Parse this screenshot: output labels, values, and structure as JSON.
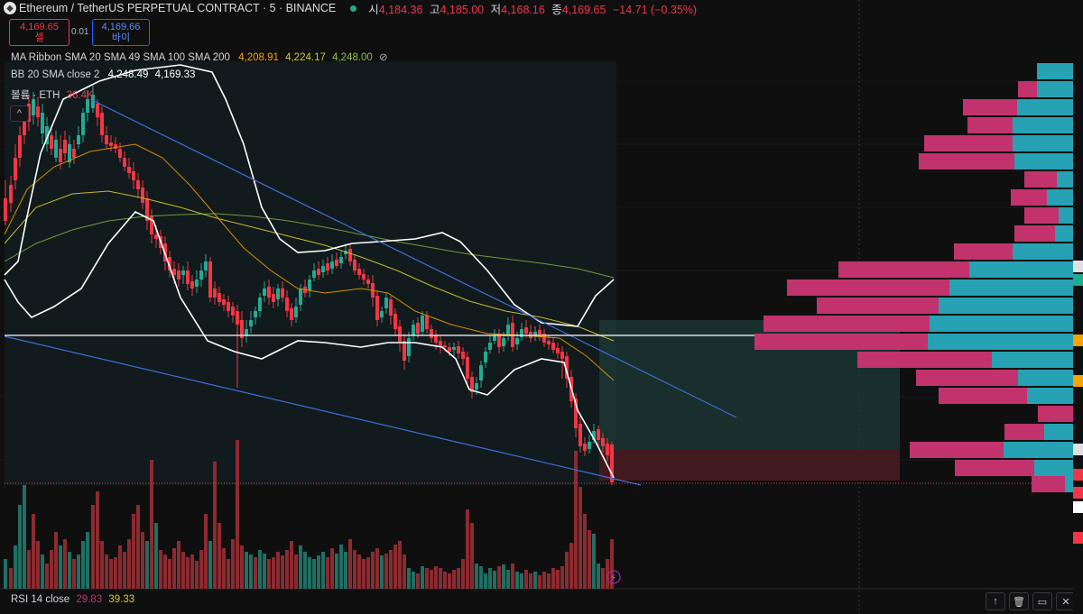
{
  "header": {
    "symbol": "Ethereum / TetherUS PERPETUAL CONTRACT · 5 · BINANCE",
    "open_label": "시",
    "open": "4,184.36",
    "high_label": "고",
    "high": "4,185.00",
    "low_label": "저",
    "low": "4,168.16",
    "close_label": "종",
    "close": "4,169.65",
    "change": "−14.71 (−0.35%)"
  },
  "trade": {
    "sell_price": "4,169.65",
    "sell_label": "셀",
    "spread": "0.01",
    "buy_price": "4,169.66",
    "buy_label": "바이"
  },
  "indicators": {
    "ma_ribbon": {
      "name": "MA Ribbon SMA 20 SMA 49 SMA 100 SMA 200",
      "v1": "4,208.91",
      "v2": "4,224.17",
      "v3": "4,248.00",
      "hidden_icon": "⊘"
    },
    "bb": {
      "name": "BB 20 SMA close 2",
      "v1": "4,248.49",
      "v2": "4,169.33"
    },
    "volume": {
      "name": "볼륨 · ETH",
      "v": "36.4K"
    },
    "rsi": {
      "name": "RSI 14 close",
      "v1": "29.83",
      "v2": "39.33"
    }
  },
  "buttons": {
    "up": "↑",
    "trash": "🗑",
    "restore": "▭",
    "close": "✕",
    "collapse": "^"
  },
  "colors": {
    "up": "#22ab94",
    "down": "#f23645",
    "bb": "#ffffff",
    "trend": "#3d6fd9",
    "sma20": "#f7a300",
    "sma49": "#d7c82c",
    "sma100": "#8bc34a",
    "vp_up": "#26a2b4",
    "vp_down": "#c2336e"
  },
  "chart_data": {
    "type": "candlestick",
    "candles_close_px_approx": "see script",
    "note": ""
  }
}
